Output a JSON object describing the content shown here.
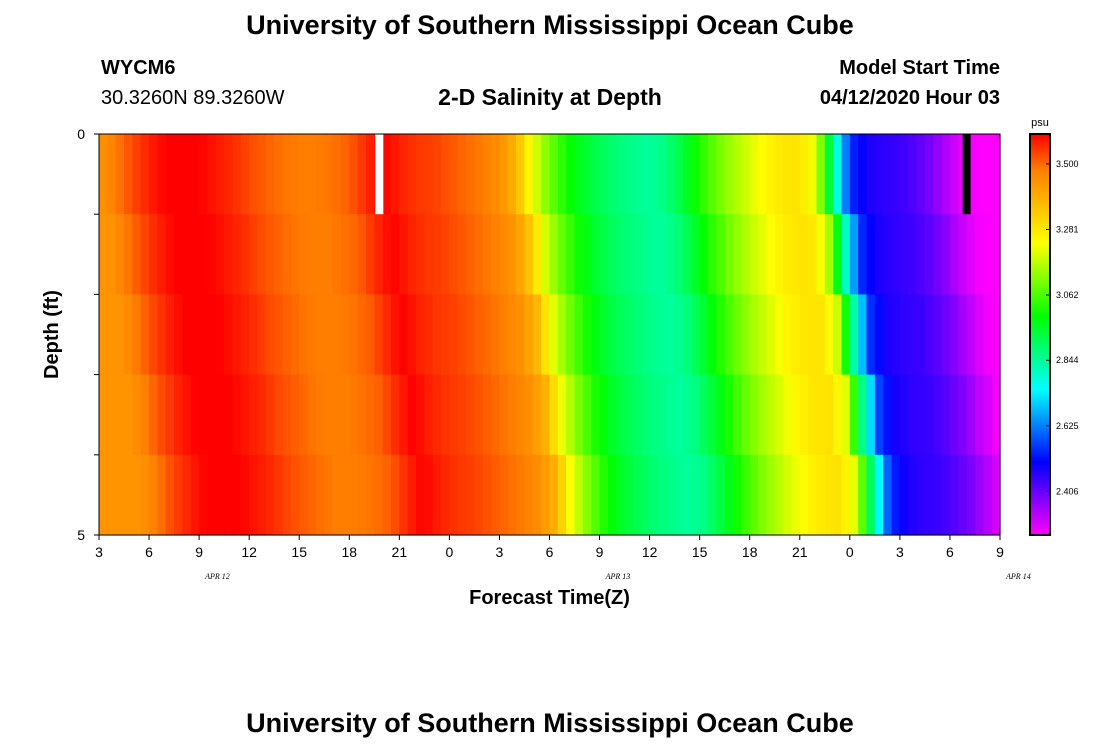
{
  "header": {
    "title_top": "University of Southern Mississippi Ocean Cube",
    "title_bottom": "University of Southern Mississippi Ocean Cube",
    "station": "WYCM6",
    "location": "30.3260N 89.3260W",
    "plot_title": "2-D Salinity at Depth",
    "model_label": "Model Start Time",
    "model_time": "04/12/2020 Hour 03"
  },
  "chart_data": {
    "type": "heatmap",
    "title": "2-D Salinity at Depth",
    "xlabel": "Forecast Time(Z)",
    "ylabel": "Depth (ft)",
    "x_start_hour": 3,
    "x_end_hour": 57,
    "x_ticks": [
      "3",
      "6",
      "9",
      "12",
      "15",
      "18",
      "21",
      "0",
      "3",
      "6",
      "9",
      "12",
      "15",
      "18",
      "21",
      "0",
      "3",
      "6",
      "9"
    ],
    "date_labels": [
      {
        "label": "APR 12",
        "hour": 11
      },
      {
        "label": "APR 13",
        "hour": 35
      },
      {
        "label": "APR 14",
        "hour": 59
      }
    ],
    "y_ticks": [
      "0",
      "5"
    ],
    "ylim": [
      0,
      5
    ],
    "colorbar": {
      "unit": "psu",
      "labels": [
        "3.500",
        "3.281",
        "3.062",
        "2.844",
        "2.625",
        "2.406"
      ],
      "label_values": [
        3.5,
        3.281,
        3.062,
        2.844,
        2.625,
        2.406
      ],
      "vmin": 2.26,
      "vmax": 3.6,
      "stops": [
        "#ff00ff",
        "#8000ff",
        "#0000ff",
        "#0080ff",
        "#00ffff",
        "#00ff80",
        "#00ff00",
        "#80ff00",
        "#ffff00",
        "#ffc000",
        "#ff8000",
        "#ff0000"
      ]
    },
    "depth_layers": 5,
    "surface_profile": [
      [
        3,
        3.44
      ],
      [
        4,
        3.48
      ],
      [
        5,
        3.53
      ],
      [
        6,
        3.57
      ],
      [
        7,
        3.6
      ],
      [
        8,
        3.6
      ],
      [
        9,
        3.6
      ],
      [
        10,
        3.58
      ],
      [
        11,
        3.56
      ],
      [
        12,
        3.53
      ],
      [
        13,
        3.51
      ],
      [
        14,
        3.49
      ],
      [
        15,
        3.48
      ],
      [
        16,
        3.48
      ],
      [
        17,
        3.49
      ],
      [
        18,
        3.51
      ],
      [
        19,
        3.56
      ],
      [
        20,
        3.6
      ],
      [
        21,
        3.57
      ],
      [
        22,
        3.55
      ],
      [
        23,
        3.54
      ],
      [
        24,
        3.52
      ],
      [
        25,
        3.5
      ],
      [
        26,
        3.48
      ],
      [
        27,
        3.45
      ],
      [
        28,
        3.38
      ],
      [
        29,
        3.21
      ],
      [
        30,
        3.1
      ],
      [
        31,
        3.01
      ],
      [
        32,
        2.95
      ],
      [
        33,
        2.91
      ],
      [
        34,
        2.88
      ],
      [
        35,
        2.86
      ],
      [
        36,
        2.84
      ],
      [
        37,
        2.87
      ],
      [
        38,
        2.94
      ],
      [
        39,
        3.02
      ],
      [
        40,
        3.09
      ],
      [
        41,
        3.15
      ],
      [
        42,
        3.2
      ],
      [
        43,
        3.25
      ],
      [
        44,
        3.28
      ],
      [
        45,
        3.29
      ],
      [
        46,
        3.2
      ],
      [
        47,
        2.85
      ],
      [
        48,
        2.55
      ],
      [
        49,
        2.48
      ],
      [
        50,
        2.46
      ],
      [
        51,
        2.45
      ],
      [
        52,
        2.42
      ],
      [
        53,
        2.38
      ],
      [
        54,
        2.32
      ],
      [
        55,
        2.27
      ],
      [
        56,
        2.26
      ],
      [
        57,
        2.26
      ]
    ],
    "time_shift_per_layer_hours": 0.6,
    "markers": [
      {
        "hour": 19.8,
        "color": "#ffffff"
      },
      {
        "hour": 55.0,
        "color": "#000000"
      }
    ]
  }
}
